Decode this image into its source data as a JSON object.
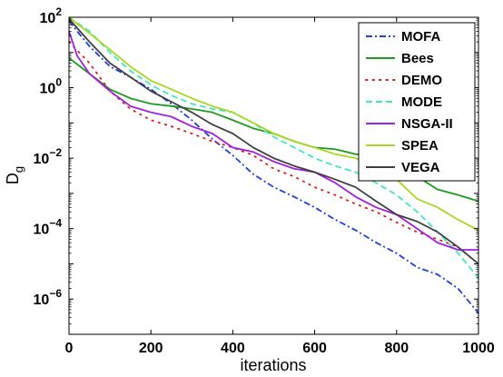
{
  "chart_data": {
    "type": "line",
    "title": "",
    "xlabel": "iterations",
    "ylabel": "D",
    "ylabel_subscript": "g",
    "xlim": [
      0,
      1000
    ],
    "ylim": [
      1e-07,
      100
    ],
    "yscale": "log",
    "grid": false,
    "legend_position": "top-right",
    "x_ticks": [
      {
        "value": 0,
        "label": "0"
      },
      {
        "value": 200,
        "label": "200"
      },
      {
        "value": 400,
        "label": "400"
      },
      {
        "value": 600,
        "label": "600"
      },
      {
        "value": 800,
        "label": "800"
      },
      {
        "value": 1000,
        "label": "1000"
      }
    ],
    "y_ticks": [
      {
        "value": 100,
        "base": "10",
        "exp": "2"
      },
      {
        "value": 1,
        "base": "10",
        "exp": "0"
      },
      {
        "value": 0.01,
        "base": "10",
        "exp": "−2"
      },
      {
        "value": 0.0001,
        "base": "10",
        "exp": "−4"
      },
      {
        "value": 1e-06,
        "base": "10",
        "exp": "−6"
      }
    ],
    "series": [
      {
        "name": "MOFA",
        "color": "#1f3fd8",
        "style": "dashdot",
        "x": [
          0,
          20,
          50,
          100,
          150,
          200,
          250,
          300,
          350,
          400,
          450,
          500,
          550,
          600,
          650,
          700,
          750,
          800,
          850,
          900,
          950,
          1000
        ],
        "y": [
          80,
          40,
          15,
          4,
          2,
          0.9,
          0.35,
          0.12,
          0.035,
          0.012,
          0.0035,
          0.0015,
          0.0008,
          0.0004,
          0.00018,
          9e-05,
          4e-05,
          2e-05,
          8e-06,
          5e-06,
          2e-06,
          4e-07
        ]
      },
      {
        "name": "Bees",
        "color": "#1f9a1f",
        "style": "solid",
        "x": [
          0,
          50,
          100,
          150,
          200,
          250,
          300,
          350,
          400,
          450,
          500,
          550,
          600,
          650,
          700,
          750,
          800,
          850,
          900,
          950,
          1000
        ],
        "y": [
          7,
          2.5,
          0.9,
          0.5,
          0.35,
          0.3,
          0.25,
          0.2,
          0.12,
          0.07,
          0.05,
          0.03,
          0.02,
          0.018,
          0.013,
          0.011,
          0.007,
          0.003,
          0.0013,
          0.0009,
          0.0006
        ]
      },
      {
        "name": "DEMO",
        "color": "#d62020",
        "style": "dotted",
        "x": [
          0,
          50,
          100,
          150,
          200,
          250,
          300,
          350,
          400,
          450,
          500,
          550,
          600,
          650,
          700,
          750,
          800,
          850,
          900,
          950,
          1000
        ],
        "y": [
          20,
          5,
          0.8,
          0.25,
          0.12,
          0.08,
          0.05,
          0.03,
          0.02,
          0.012,
          0.005,
          0.003,
          0.0015,
          0.0009,
          0.0005,
          0.0003,
          0.00015,
          8e-05,
          5e-05,
          3e-05,
          1e-05
        ]
      },
      {
        "name": "MODE",
        "color": "#40e8c0",
        "style": "dashed",
        "x": [
          0,
          50,
          100,
          150,
          200,
          250,
          300,
          350,
          400,
          450,
          500,
          550,
          600,
          650,
          700,
          750,
          800,
          850,
          900,
          950,
          1000
        ],
        "y": [
          100,
          40,
          10,
          3,
          1.2,
          0.6,
          0.35,
          0.25,
          0.2,
          0.1,
          0.04,
          0.02,
          0.01,
          0.006,
          0.004,
          0.002,
          0.0009,
          0.0003,
          8e-05,
          2e-05,
          4e-06
        ]
      },
      {
        "name": "NSGA-II",
        "color": "#a020e0",
        "style": "solid",
        "x": [
          0,
          20,
          50,
          100,
          150,
          200,
          250,
          300,
          350,
          400,
          450,
          500,
          550,
          600,
          650,
          700,
          750,
          800,
          850,
          900,
          950,
          1000
        ],
        "y": [
          40,
          8,
          2.5,
          0.8,
          0.3,
          0.2,
          0.15,
          0.08,
          0.05,
          0.02,
          0.015,
          0.008,
          0.005,
          0.004,
          0.002,
          0.0008,
          0.0004,
          0.00025,
          0.0001,
          4e-05,
          2.5e-05,
          2.5e-05
        ]
      },
      {
        "name": "SPEA",
        "color": "#a8d820",
        "style": "solid",
        "x": [
          0,
          50,
          100,
          150,
          200,
          250,
          300,
          350,
          400,
          450,
          500,
          550,
          600,
          650,
          700,
          750,
          800,
          850,
          900,
          950,
          1000
        ],
        "y": [
          100,
          35,
          12,
          4,
          1.6,
          0.9,
          0.5,
          0.3,
          0.2,
          0.1,
          0.05,
          0.03,
          0.02,
          0.013,
          0.01,
          0.005,
          0.0025,
          0.0007,
          0.0004,
          0.00018,
          9e-05
        ]
      },
      {
        "name": "VEGA",
        "color": "#404040",
        "style": "solid",
        "x": [
          0,
          50,
          100,
          150,
          200,
          250,
          300,
          350,
          400,
          450,
          500,
          550,
          600,
          650,
          700,
          750,
          800,
          850,
          900,
          950,
          1000
        ],
        "y": [
          90,
          20,
          5,
          2,
          0.8,
          0.4,
          0.2,
          0.09,
          0.05,
          0.02,
          0.01,
          0.006,
          0.004,
          0.0025,
          0.0015,
          0.0006,
          0.00025,
          0.00016,
          8e-05,
          3e-05,
          1e-05
        ]
      }
    ]
  }
}
